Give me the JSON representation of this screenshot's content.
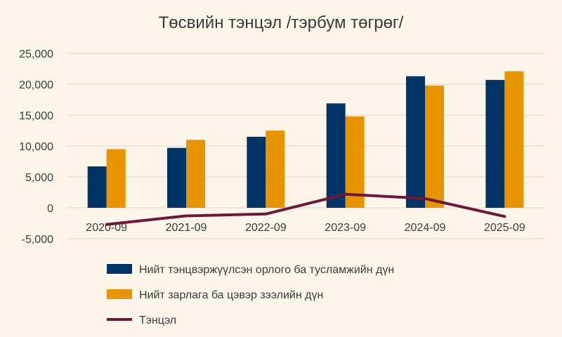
{
  "chart_data": {
    "type": "bar",
    "title": "Төсвийн тэнцэл /тэрбум төгрөг/",
    "xlabel": "",
    "ylabel": "",
    "ylim": [
      -5000,
      25000
    ],
    "yticks": [
      25000,
      20000,
      15000,
      10000,
      5000,
      0,
      -5000
    ],
    "ytick_labels": [
      "25,000",
      "20,000",
      "15,000",
      "10,000",
      "5,000",
      "0",
      "-5,000"
    ],
    "categories": [
      "2020-09",
      "2021-09",
      "2022-09",
      "2023-09",
      "2024-09",
      "2025-09"
    ],
    "series": [
      {
        "name": "Нийт тэнцвэржүүлсэн орлого ба тусламжийн дүн",
        "type": "bar",
        "color": "#003366",
        "values": [
          6700,
          9700,
          11500,
          16900,
          21300,
          20700
        ]
      },
      {
        "name": "Нийт зарлага ба цэвэр зээлийн дүн",
        "type": "bar",
        "color": "#e69500",
        "values": [
          9500,
          11000,
          12500,
          14800,
          19800,
          22100
        ]
      },
      {
        "name": "Тэнцэл",
        "type": "line",
        "color": "#6b1a3a",
        "values": [
          -2700,
          -1300,
          -1000,
          2200,
          1500,
          -1400
        ]
      }
    ],
    "legend": "bottom",
    "grid": true
  }
}
